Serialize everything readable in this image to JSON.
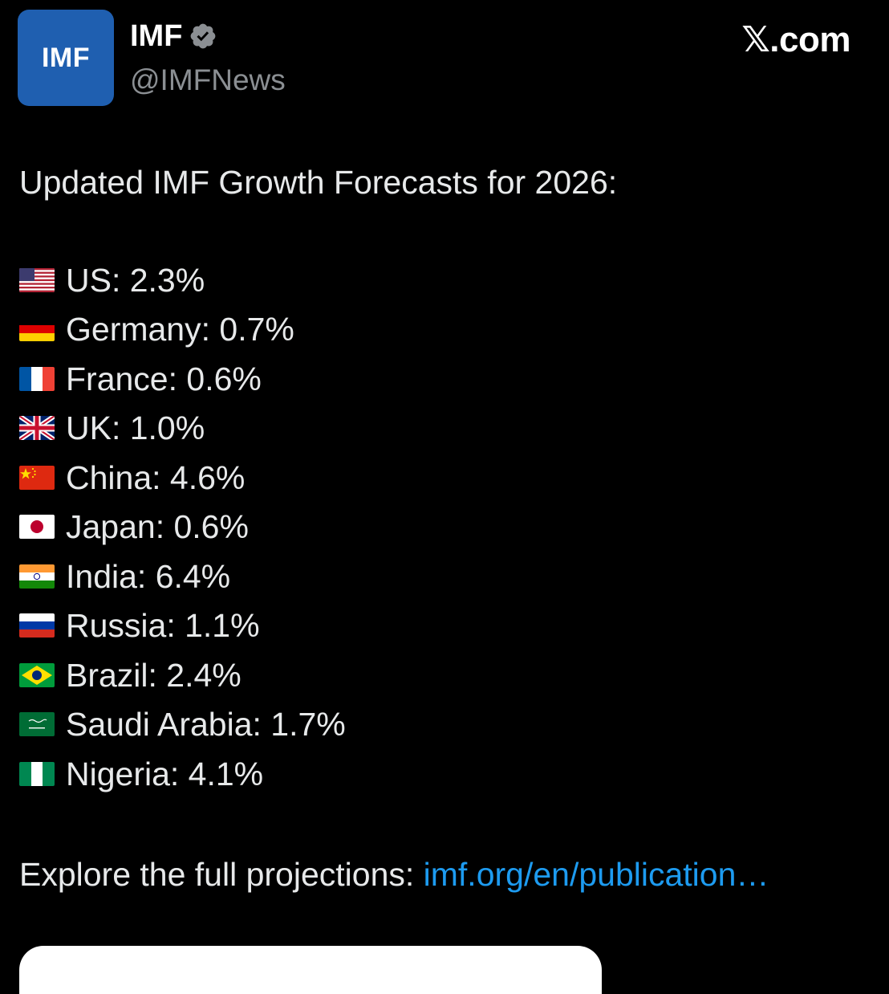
{
  "header": {
    "avatar_text": "IMF",
    "avatar_color": "#1f5fb0",
    "name": "IMF",
    "verified_icon": "verified-badge-icon",
    "handle": "@IMFNews",
    "site": "𝕏.com"
  },
  "tweet": {
    "headline": "Updated IMF Growth Forecasts for 2026:",
    "forecasts": [
      {
        "flag": "us-flag-icon",
        "text": "US: 2.3%"
      },
      {
        "flag": "germany-flag-icon",
        "text": "Germany: 0.7%"
      },
      {
        "flag": "france-flag-icon",
        "text": "France: 0.6%"
      },
      {
        "flag": "uk-flag-icon",
        "text": "UK: 1.0%"
      },
      {
        "flag": "china-flag-icon",
        "text": "China: 4.6%"
      },
      {
        "flag": "japan-flag-icon",
        "text": "Japan: 0.6%"
      },
      {
        "flag": "india-flag-icon",
        "text": "India: 6.4%"
      },
      {
        "flag": "russia-flag-icon",
        "text": "Russia: 1.1%"
      },
      {
        "flag": "brazil-flag-icon",
        "text": "Brazil: 2.4%"
      },
      {
        "flag": "saudi-arabia-flag-icon",
        "text": "Saudi Arabia: 1.7%"
      },
      {
        "flag": "nigeria-flag-icon",
        "text": "Nigeria: 4.1%"
      }
    ],
    "explore_text": "Explore the full projections: ",
    "explore_link": "imf.org/en/publication…",
    "link_color": "#1d9bf0"
  }
}
